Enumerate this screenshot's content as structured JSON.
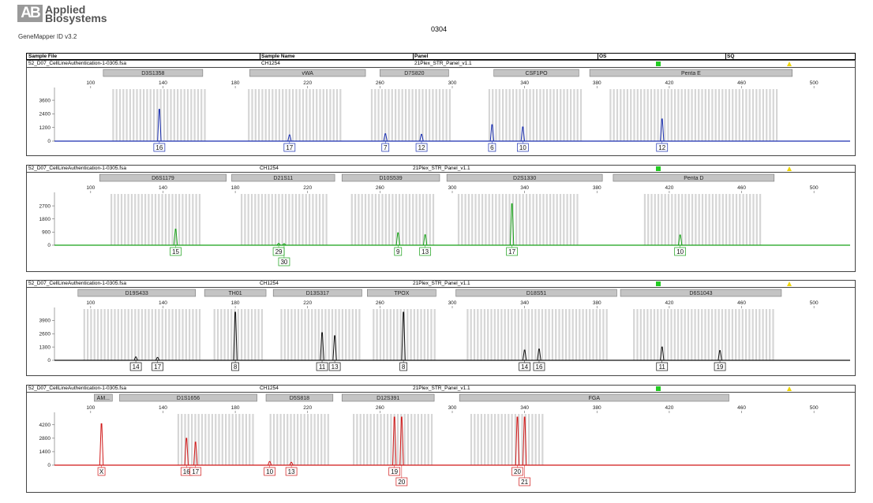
{
  "header": {
    "logo_mark": "AB",
    "logo_line1": "Applied",
    "logo_line2": "Biosystems",
    "software": "GeneMapper ID v3.2",
    "run_title": "0304"
  },
  "table_header": {
    "sample_file": "Sample File",
    "sample_name": "Sample Name",
    "panel": "Panel",
    "os": "OS",
    "sq": "SQ"
  },
  "chart_data": [
    {
      "type": "line",
      "sample_file": "52_D07_CellLineAuthentication-1-0305.fsa",
      "sample_name": "CH1254",
      "panel_name": "21Plex_STR_Panel_v1.1",
      "color": "#1a2fb0",
      "xlim": [
        80,
        520
      ],
      "ylim": [
        0,
        4300
      ],
      "x_ticks": [
        100,
        140,
        180,
        220,
        260,
        300,
        340,
        380,
        420,
        460,
        500
      ],
      "y_ticks": [
        0,
        1200,
        2400,
        3600
      ],
      "markers": [
        {
          "name": "D3S1358",
          "start": 107,
          "end": 162
        },
        {
          "name": "vWA",
          "start": 188,
          "end": 252
        },
        {
          "name": "D7S820",
          "start": 260,
          "end": 298
        },
        {
          "name": "CSF1PO",
          "start": 323,
          "end": 370
        },
        {
          "name": "Penta E",
          "start": 376,
          "end": 488
        }
      ],
      "peaks": [
        {
          "x": 138,
          "height": 2800,
          "allele": "16",
          "label_row": 0
        },
        {
          "x": 210,
          "height": 550,
          "allele": "17",
          "label_row": 0
        },
        {
          "x": 263,
          "height": 650,
          "allele": "7",
          "label_row": 0
        },
        {
          "x": 283,
          "height": 600,
          "allele": "12",
          "label_row": 0
        },
        {
          "x": 322,
          "height": 1450,
          "allele": "6",
          "label_row": 0
        },
        {
          "x": 339,
          "height": 1250,
          "allele": "10",
          "label_row": 0
        },
        {
          "x": 416,
          "height": 1950,
          "allele": "12",
          "label_row": 0
        }
      ],
      "bins": [
        [
          112,
          163
        ],
        [
          187,
          238
        ],
        [
          255,
          299
        ],
        [
          320,
          371
        ],
        [
          387,
          480
        ]
      ]
    },
    {
      "type": "line",
      "sample_file": "52_D07_CellLineAuthentication-1-0305.fsa",
      "sample_name": "CH1254",
      "panel_name": "21Plex_STR_Panel_v1.1",
      "color": "#18a018",
      "xlim": [
        80,
        520
      ],
      "ylim": [
        0,
        3300
      ],
      "x_ticks": [
        100,
        140,
        180,
        220,
        260,
        300,
        340,
        380,
        420,
        460,
        500
      ],
      "y_ticks": [
        0,
        900,
        1800,
        2700
      ],
      "markers": [
        {
          "name": "D6S1179",
          "start": 105,
          "end": 175
        },
        {
          "name": "D21S11",
          "start": 178,
          "end": 235
        },
        {
          "name": "D10S539",
          "start": 239,
          "end": 293
        },
        {
          "name": "D2S1330",
          "start": 297,
          "end": 383
        },
        {
          "name": "Penta D",
          "start": 389,
          "end": 478
        }
      ],
      "peaks": [
        {
          "x": 147,
          "height": 1100,
          "allele": "15",
          "label_row": 0
        },
        {
          "x": 204,
          "height": 120,
          "allele": "29",
          "label_row": 0
        },
        {
          "x": 207,
          "height": 100,
          "allele": "30",
          "label_row": 1
        },
        {
          "x": 270,
          "height": 850,
          "allele": "9",
          "label_row": 0
        },
        {
          "x": 285,
          "height": 720,
          "allele": "13",
          "label_row": 0
        },
        {
          "x": 333,
          "height": 2850,
          "allele": "17",
          "label_row": 0
        },
        {
          "x": 426,
          "height": 700,
          "allele": "10",
          "label_row": 0
        }
      ],
      "bins": [
        [
          111,
          160
        ],
        [
          183,
          230
        ],
        [
          244,
          290
        ],
        [
          303,
          370
        ],
        [
          406,
          470
        ]
      ]
    },
    {
      "type": "line",
      "sample_file": "52_D07_CellLineAuthentication-1-0305.fsa",
      "sample_name": "CH1254",
      "panel_name": "21Plex_STR_Panel_v1.1",
      "color": "#111111",
      "xlim": [
        80,
        520
      ],
      "ylim": [
        0,
        4700
      ],
      "x_ticks": [
        100,
        140,
        180,
        220,
        260,
        300,
        340,
        380,
        420,
        460,
        500
      ],
      "y_ticks": [
        0,
        1300,
        2600,
        3900
      ],
      "markers": [
        {
          "name": "D19S433",
          "start": 93,
          "end": 158
        },
        {
          "name": "TH01",
          "start": 163,
          "end": 197
        },
        {
          "name": "D13S317",
          "start": 201,
          "end": 250
        },
        {
          "name": "TPOX",
          "start": 253,
          "end": 291
        },
        {
          "name": "D18S51",
          "start": 302,
          "end": 391
        },
        {
          "name": "D6S1043",
          "start": 393,
          "end": 482
        }
      ],
      "peaks": [
        {
          "x": 125,
          "height": 330,
          "allele": "14",
          "label_row": 0
        },
        {
          "x": 137,
          "height": 280,
          "allele": "17",
          "label_row": 0
        },
        {
          "x": 180,
          "height": 4700,
          "allele": "8",
          "label_row": 0
        },
        {
          "x": 228,
          "height": 2700,
          "allele": "11",
          "label_row": 0
        },
        {
          "x": 235,
          "height": 2400,
          "allele": "13",
          "label_row": 0
        },
        {
          "x": 273,
          "height": 4700,
          "allele": "8",
          "label_row": 0
        },
        {
          "x": 340,
          "height": 1000,
          "allele": "14",
          "label_row": 0
        },
        {
          "x": 348,
          "height": 1100,
          "allele": "16",
          "label_row": 0
        },
        {
          "x": 416,
          "height": 1300,
          "allele": "11",
          "label_row": 0
        },
        {
          "x": 448,
          "height": 950,
          "allele": "19",
          "label_row": 0
        }
      ],
      "bins": [
        [
          96,
          160
        ],
        [
          168,
          196
        ],
        [
          205,
          250
        ],
        [
          256,
          290
        ],
        [
          308,
          385
        ],
        [
          400,
          478
        ]
      ]
    },
    {
      "type": "line",
      "sample_file": "52_D07_CellLineAuthentication-1-0305.fsa",
      "sample_name": "CH1254",
      "panel_name": "21Plex_STR_Panel_v1.1",
      "color": "#d01818",
      "xlim": [
        80,
        520
      ],
      "ylim": [
        0,
        5000
      ],
      "x_ticks": [
        100,
        140,
        180,
        220,
        260,
        300,
        340,
        380,
        420,
        460,
        500
      ],
      "y_ticks": [
        0,
        1400,
        2800,
        4200
      ],
      "markers": [
        {
          "name": "AM...",
          "start": 102,
          "end": 112
        },
        {
          "name": "D1S1656",
          "start": 116,
          "end": 192
        },
        {
          "name": "D5S818",
          "start": 197,
          "end": 234
        },
        {
          "name": "D12S391",
          "start": 239,
          "end": 290
        },
        {
          "name": "FGA",
          "start": 304,
          "end": 453
        }
      ],
      "peaks": [
        {
          "x": 106,
          "height": 4300,
          "allele": "X",
          "label_row": 0
        },
        {
          "x": 153,
          "height": 2800,
          "allele": "16",
          "label_row": 0
        },
        {
          "x": 158,
          "height": 2400,
          "allele": "17",
          "label_row": 0
        },
        {
          "x": 199,
          "height": 380,
          "allele": "10",
          "label_row": 0
        },
        {
          "x": 211,
          "height": 300,
          "allele": "13",
          "label_row": 0
        },
        {
          "x": 268,
          "height": 5000,
          "allele": "19",
          "label_row": 0
        },
        {
          "x": 272,
          "height": 5000,
          "allele": "20",
          "label_row": 1
        },
        {
          "x": 336,
          "height": 5000,
          "allele": "20",
          "label_row": 0
        },
        {
          "x": 340,
          "height": 5000,
          "allele": "21",
          "label_row": 1
        }
      ],
      "bins": [
        [
          148,
          190
        ],
        [
          199,
          232
        ],
        [
          245,
          290
        ],
        [
          310,
          350
        ]
      ]
    }
  ]
}
